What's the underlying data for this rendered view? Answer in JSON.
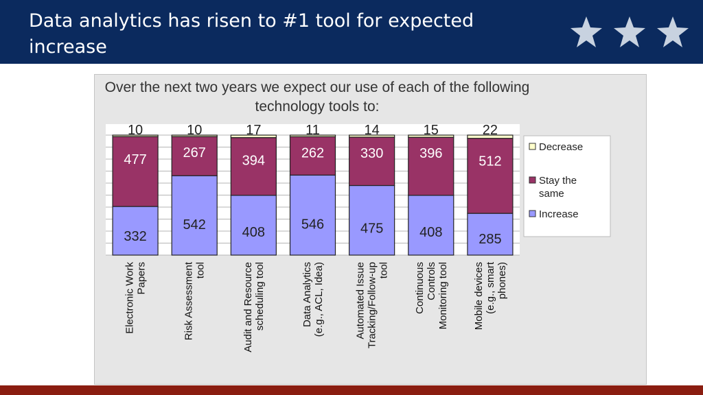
{
  "header": {
    "title": "Data analytics has risen to #1 tool for expected increase"
  },
  "colors": {
    "header_bg": "#0b2a5e",
    "bottom_bar": "#8a1d10",
    "increase": "#9999ff",
    "stay_the_same": "#993366",
    "decrease": "#ffffcc"
  },
  "icons": [
    "star-icon",
    "star-icon",
    "star-icon"
  ],
  "chart_data": {
    "type": "bar",
    "stacked": true,
    "title": "Over the next two years we expect our use of each of the following technology tools to:",
    "categories": [
      "Electronic Work Papers",
      "Risk Assessment tool",
      "Audit and Resource scheduling tool",
      "Data Analytics (e.g., ACL, Idea)",
      "Automated Issue Tracking/Follow-up tool",
      "Continuous Controls Monitoring tool",
      "Mobile devices (e.g., smart phones)"
    ],
    "series": [
      {
        "name": "Increase",
        "values": [
          332,
          542,
          408,
          546,
          475,
          408,
          285
        ],
        "color": "#9999ff"
      },
      {
        "name": "Stay the same",
        "values": [
          477,
          267,
          394,
          262,
          330,
          396,
          512
        ],
        "color": "#993366"
      },
      {
        "name": "Decrease",
        "values": [
          10,
          10,
          17,
          11,
          14,
          15,
          22
        ],
        "color": "#ffffcc"
      }
    ],
    "legend_position": "right",
    "grid": true
  }
}
